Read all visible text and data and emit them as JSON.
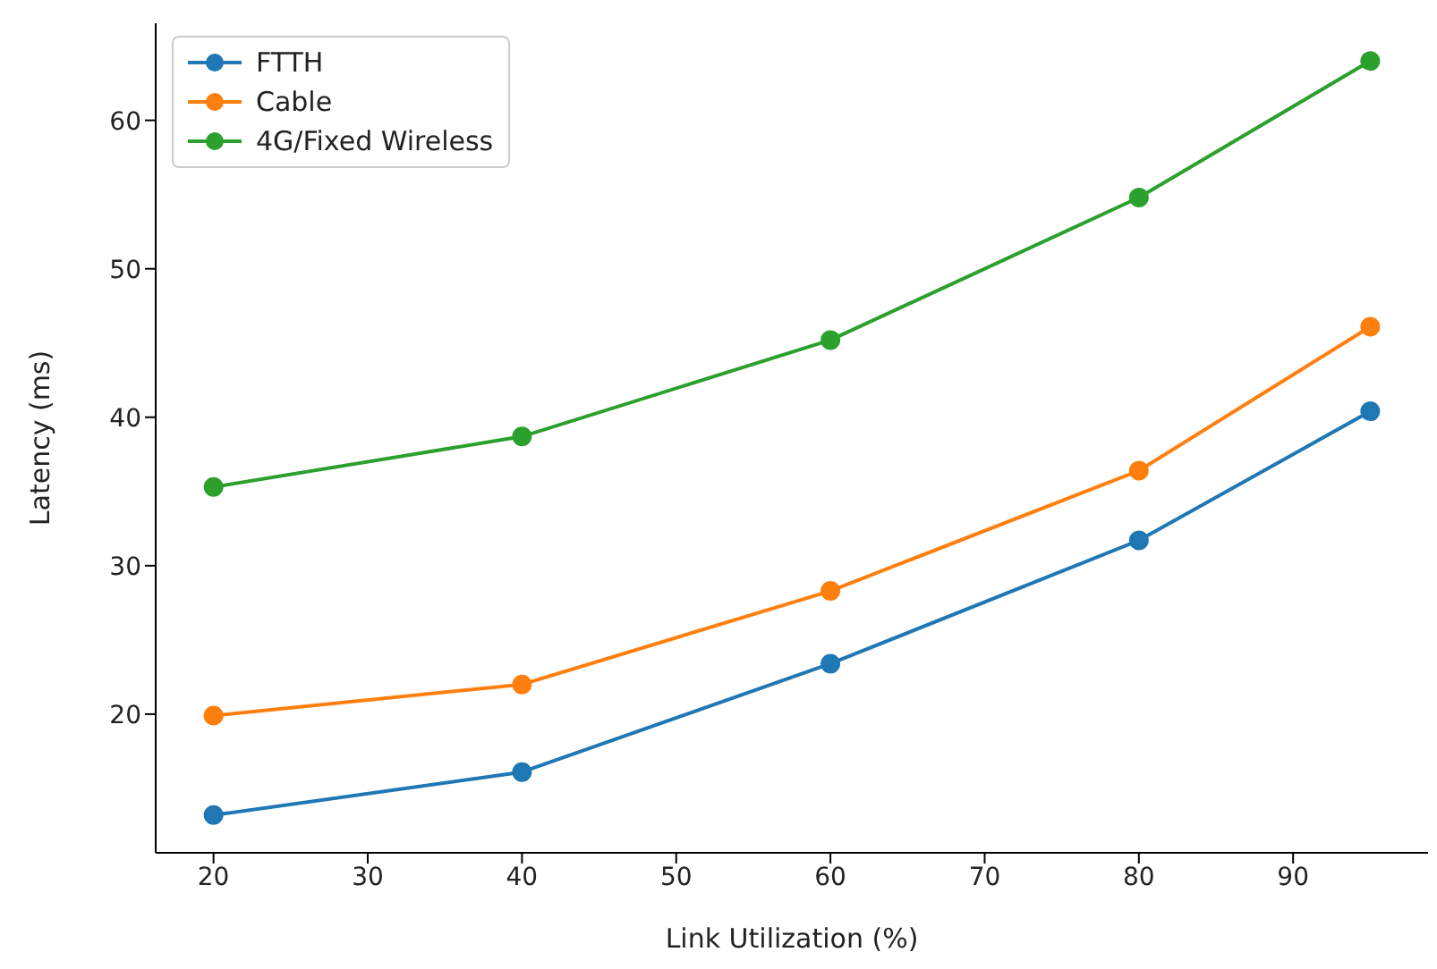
{
  "chart_data": {
    "type": "line",
    "xlabel": "Link Utilization (%)",
    "ylabel": "Latency (ms)",
    "x": [
      20,
      40,
      60,
      80,
      95
    ],
    "series": [
      {
        "name": "FTTH",
        "color": "#1f77b4",
        "values": [
          13.2,
          16.1,
          23.4,
          31.7,
          40.4
        ]
      },
      {
        "name": "Cable",
        "color": "#ff7f0e",
        "values": [
          19.9,
          22.0,
          28.3,
          36.4,
          46.1
        ]
      },
      {
        "name": "4G/Fixed Wireless",
        "color": "#2ca02c",
        "values": [
          35.3,
          38.7,
          45.2,
          54.8,
          64.0
        ]
      }
    ],
    "xlim": [
      16.25,
      98.75
    ],
    "xticks": [
      20,
      30,
      40,
      50,
      60,
      70,
      80,
      90
    ],
    "ylim": [
      10.66,
      66.54
    ],
    "yticks": [
      20,
      30,
      40,
      50,
      60
    ],
    "grid": false,
    "legend": "top left",
    "marker": "circle",
    "line_style": "solid"
  }
}
